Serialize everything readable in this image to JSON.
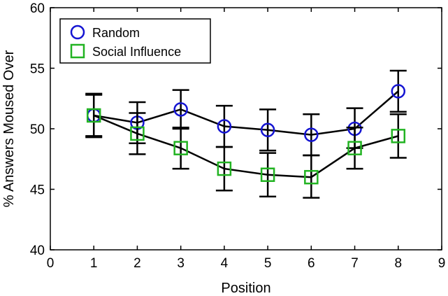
{
  "chart_data": {
    "type": "line",
    "title": "",
    "xlabel": "Position",
    "ylabel": "% Answers Moused Over",
    "xlim": [
      0,
      9
    ],
    "ylim": [
      40,
      60
    ],
    "xticks": [
      "0",
      "1",
      "2",
      "3",
      "4",
      "5",
      "6",
      "7",
      "8",
      "9"
    ],
    "yticks": [
      "40",
      "45",
      "50",
      "55",
      "60"
    ],
    "grid": false,
    "legend_position": "top-left",
    "x": [
      1,
      2,
      3,
      4,
      5,
      6,
      7,
      8
    ],
    "series": [
      {
        "name": "Random",
        "marker": "circle",
        "color": "#1414d2",
        "values": [
          51.1,
          50.5,
          51.6,
          50.2,
          49.9,
          49.5,
          50.0,
          53.1
        ],
        "err_low": [
          49.4,
          48.8,
          50.0,
          48.5,
          48.2,
          47.8,
          48.4,
          51.4
        ],
        "err_high": [
          52.8,
          52.2,
          53.2,
          51.9,
          51.6,
          51.2,
          51.7,
          54.8
        ]
      },
      {
        "name": "Social Influence",
        "marker": "square",
        "color": "#22b322",
        "values": [
          51.1,
          49.6,
          48.4,
          46.7,
          46.2,
          46.0,
          48.4,
          49.4
        ],
        "err_low": [
          49.3,
          47.9,
          46.7,
          44.9,
          44.4,
          44.3,
          46.7,
          47.6
        ],
        "err_high": [
          52.9,
          51.3,
          50.1,
          48.5,
          48.0,
          47.8,
          50.1,
          51.2
        ]
      }
    ]
  }
}
